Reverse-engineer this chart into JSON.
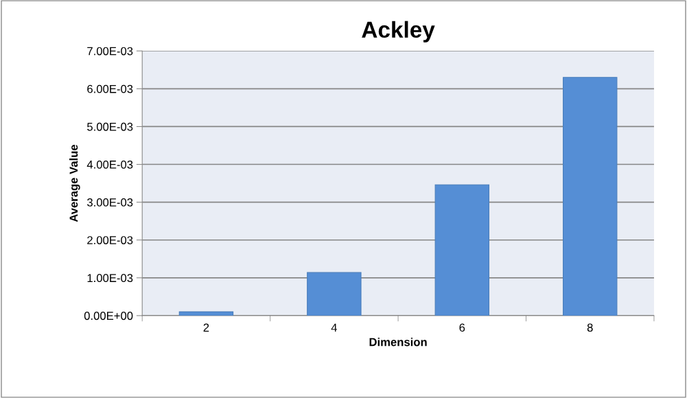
{
  "chart_data": {
    "type": "bar",
    "title": "Ackley",
    "xlabel": "Dimension",
    "ylabel": "Average Value",
    "categories": [
      "2",
      "4",
      "6",
      "8"
    ],
    "values": [
      0.0001,
      0.00114,
      0.00346,
      0.0063
    ],
    "color": "#558ed5",
    "ylim": [
      0,
      0.007
    ],
    "yticks": [
      {
        "value": 0,
        "label": "0.00E+00"
      },
      {
        "value": 0.001,
        "label": "1.00E-03"
      },
      {
        "value": 0.002,
        "label": "2.00E-03"
      },
      {
        "value": 0.003,
        "label": "3.00E-03"
      },
      {
        "value": 0.004,
        "label": "4.00E-03"
      },
      {
        "value": 0.005,
        "label": "5.00E-03"
      },
      {
        "value": 0.006,
        "label": "6.00E-03"
      },
      {
        "value": 0.007,
        "label": "7.00E-03"
      }
    ],
    "grid": "y",
    "legend": false
  }
}
